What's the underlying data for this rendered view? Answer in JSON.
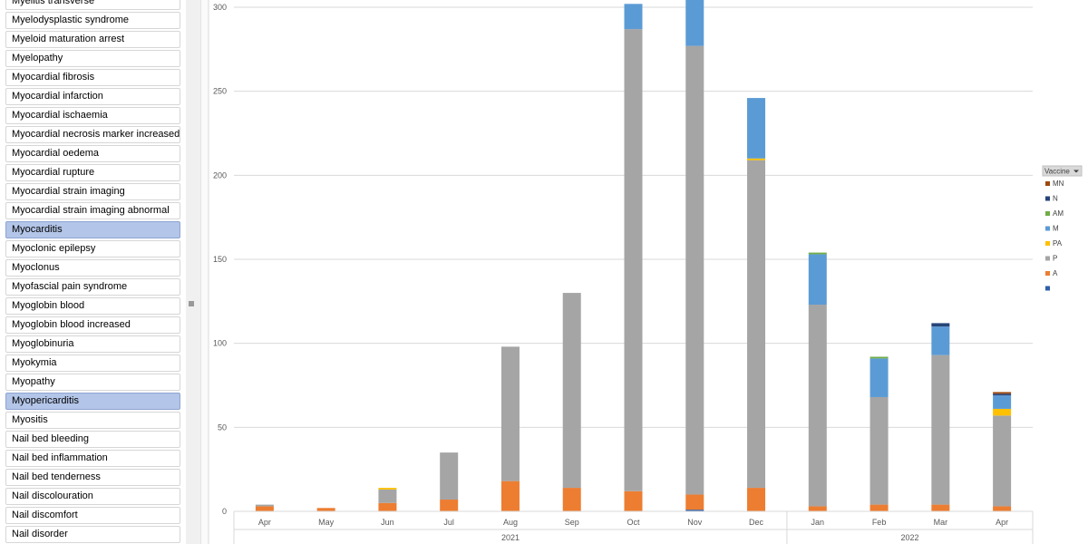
{
  "slicer": {
    "items": [
      {
        "label": "Myelitis transverse",
        "selected": false
      },
      {
        "label": "Myelodysplastic syndrome",
        "selected": false
      },
      {
        "label": "Myeloid maturation arrest",
        "selected": false
      },
      {
        "label": "Myelopathy",
        "selected": false
      },
      {
        "label": "Myocardial fibrosis",
        "selected": false
      },
      {
        "label": "Myocardial infarction",
        "selected": false
      },
      {
        "label": "Myocardial ischaemia",
        "selected": false
      },
      {
        "label": "Myocardial necrosis marker increased",
        "selected": false
      },
      {
        "label": "Myocardial oedema",
        "selected": false
      },
      {
        "label": "Myocardial rupture",
        "selected": false
      },
      {
        "label": "Myocardial strain imaging",
        "selected": false
      },
      {
        "label": "Myocardial strain imaging abnormal",
        "selected": false
      },
      {
        "label": "Myocarditis",
        "selected": true
      },
      {
        "label": "Myoclonic epilepsy",
        "selected": false
      },
      {
        "label": "Myoclonus",
        "selected": false
      },
      {
        "label": "Myofascial pain syndrome",
        "selected": false
      },
      {
        "label": "Myoglobin blood",
        "selected": false
      },
      {
        "label": "Myoglobin blood increased",
        "selected": false
      },
      {
        "label": "Myoglobinuria",
        "selected": false
      },
      {
        "label": "Myokymia",
        "selected": false
      },
      {
        "label": "Myopathy",
        "selected": false
      },
      {
        "label": "Myopericarditis",
        "selected": true
      },
      {
        "label": "Myositis",
        "selected": false
      },
      {
        "label": "Nail bed bleeding",
        "selected": false
      },
      {
        "label": "Nail bed inflammation",
        "selected": false
      },
      {
        "label": "Nail bed tenderness",
        "selected": false
      },
      {
        "label": "Nail discolouration",
        "selected": false
      },
      {
        "label": "Nail discomfort",
        "selected": false
      },
      {
        "label": "Nail disorder",
        "selected": false
      }
    ]
  },
  "chart_data": {
    "type": "bar",
    "stacked": true,
    "categories": [
      "Apr",
      "May",
      "Jun",
      "Jul",
      "Aug",
      "Sep",
      "Oct",
      "Nov",
      "Dec",
      "Jan",
      "Feb",
      "Mar",
      "Apr"
    ],
    "groups": [
      {
        "label": "2021",
        "from": 0,
        "to": 8
      },
      {
        "label": "2022",
        "from": 9,
        "to": 12
      }
    ],
    "ylim": [
      0,
      300
    ],
    "yticks": [
      0,
      50,
      100,
      150,
      200,
      250,
      300
    ],
    "grid": true,
    "legend_title": "Vaccine",
    "legend_position": "right",
    "series": [
      {
        "name": "",
        "color": "#2e5fa8",
        "values": [
          0,
          0,
          0,
          0,
          0,
          0,
          0,
          1,
          0,
          0,
          0,
          0,
          0
        ]
      },
      {
        "name": "A",
        "color": "#ed7d31",
        "values": [
          3,
          2,
          5,
          7,
          18,
          14,
          12,
          9,
          14,
          3,
          4,
          4,
          3
        ]
      },
      {
        "name": "P",
        "color": "#a5a5a5",
        "values": [
          1,
          0,
          8,
          28,
          80,
          116,
          275,
          267,
          195,
          120,
          64,
          89,
          54
        ]
      },
      {
        "name": "PA",
        "color": "#ffc000",
        "values": [
          0,
          0,
          1,
          0,
          0,
          0,
          0,
          0,
          1,
          0,
          0,
          0,
          4
        ]
      },
      {
        "name": "M",
        "color": "#5b9bd5",
        "values": [
          0,
          0,
          0,
          0,
          0,
          0,
          15,
          29,
          36,
          30,
          23,
          17,
          8
        ]
      },
      {
        "name": "AM",
        "color": "#70ad47",
        "values": [
          0,
          0,
          0,
          0,
          0,
          0,
          0,
          0,
          0,
          1,
          1,
          0,
          0
        ]
      },
      {
        "name": "N",
        "color": "#264478",
        "values": [
          0,
          0,
          0,
          0,
          0,
          0,
          0,
          0,
          0,
          0,
          0,
          2,
          1
        ]
      },
      {
        "name": "MN",
        "color": "#9e480e",
        "values": [
          0,
          0,
          0,
          0,
          0,
          0,
          0,
          0,
          0,
          0,
          0,
          0,
          1
        ]
      }
    ]
  }
}
